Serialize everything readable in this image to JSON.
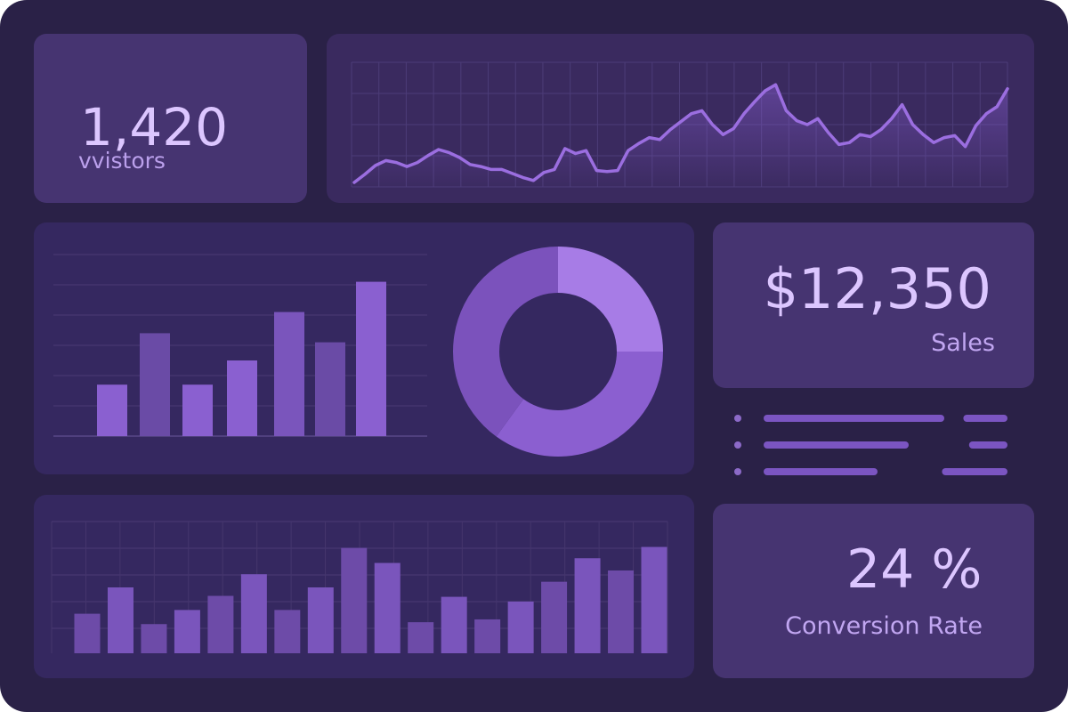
{
  "stats": {
    "visitors": {
      "value": "1,420",
      "label": "vvistors"
    },
    "sales": {
      "value": "$12,350",
      "label": "Sales"
    },
    "conversion": {
      "value": "24 %",
      "label": "Conversion Rate"
    }
  },
  "colors": {
    "background": "#2a2147",
    "card": "#463471",
    "accent": "#a77ce6",
    "accent_dark": "#6e4da8",
    "text": "#dcc6ff"
  },
  "chart_data": [
    {
      "type": "line",
      "x": [
        0,
        1,
        2,
        3,
        4,
        5,
        6,
        7,
        8,
        9,
        10,
        11,
        12,
        13,
        14,
        15,
        16,
        17,
        18,
        19,
        20,
        21,
        22,
        23,
        24,
        25,
        26,
        27,
        28,
        29,
        30,
        31,
        32,
        33,
        34,
        35,
        36,
        37,
        38,
        39,
        40,
        41,
        42,
        43,
        44,
        45,
        46,
        47,
        48,
        49,
        50,
        51,
        52,
        53,
        54,
        55,
        56,
        57,
        58,
        59,
        60,
        61,
        62
      ],
      "series": [
        {
          "values": [
            0,
            0.08,
            0.17,
            0.22,
            0.2,
            0.16,
            0.2,
            0.27,
            0.33,
            0.3,
            0.25,
            0.18,
            0.16,
            0.13,
            0.13,
            0.09,
            0.05,
            0.02,
            0.1,
            0.13,
            0.34,
            0.29,
            0.32,
            0.12,
            0.11,
            0.12,
            0.32,
            0.39,
            0.45,
            0.43,
            0.53,
            0.61,
            0.69,
            0.72,
            0.58,
            0.48,
            0.54,
            0.69,
            0.81,
            0.92,
            0.98,
            0.72,
            0.62,
            0.58,
            0.64,
            0.5,
            0.38,
            0.4,
            0.48,
            0.46,
            0.53,
            0.64,
            0.78,
            0.58,
            0.48,
            0.4,
            0.45,
            0.47,
            0.36,
            0.57,
            0.69,
            0.76,
            0.94
          ]
        }
      ],
      "grid": true
    },
    {
      "type": "bar",
      "values": [
        34,
        68,
        34,
        50,
        82,
        62,
        102
      ],
      "ylim": [
        0,
        120
      ],
      "grid": true
    },
    {
      "type": "pie",
      "values": [
        25,
        35,
        40
      ],
      "colors": [
        "#a77ce6",
        "#8b5fd0",
        "#7b52bc"
      ]
    },
    {
      "type": "bar",
      "values": [
        42,
        70,
        31,
        46,
        61,
        84,
        46,
        70,
        112,
        96,
        33,
        60,
        36,
        55,
        76,
        101,
        88,
        113
      ],
      "ylim": [
        0,
        140
      ],
      "grid": true
    }
  ],
  "list_rows": [
    {
      "line_a": 0.78,
      "line_b": 0.26
    },
    {
      "line_a": 0.62,
      "line_b": 0.22
    },
    {
      "line_a": 0.48,
      "line_b": 0.41
    }
  ]
}
